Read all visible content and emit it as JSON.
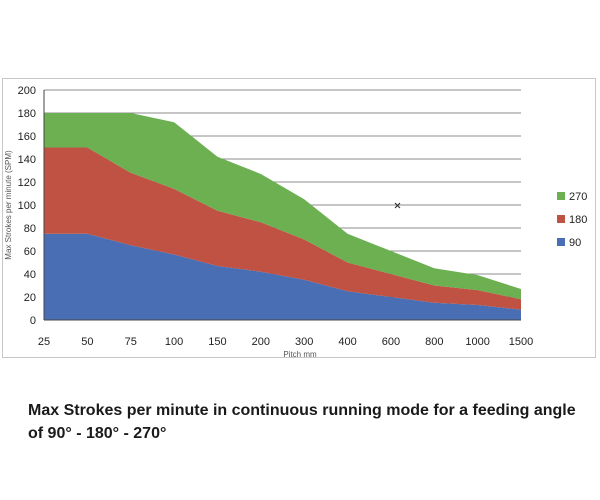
{
  "caption": "Max Strokes per minute in continuous running mode for a feeding angle of 90° - 180° - 270°",
  "chart_data": {
    "type": "area",
    "stacked": true,
    "categories": [
      "25",
      "50",
      "75",
      "100",
      "150",
      "200",
      "300",
      "400",
      "600",
      "800",
      "1000",
      "1500"
    ],
    "series": [
      {
        "name": "90",
        "color": "#4a6eb3",
        "values": [
          75,
          75,
          65,
          57,
          47,
          42,
          35,
          25,
          20,
          15,
          13,
          9
        ]
      },
      {
        "name": "180",
        "color": "#bf5243",
        "values": [
          75,
          75,
          63,
          57,
          48,
          43,
          35,
          25,
          20,
          15,
          13,
          9
        ]
      },
      {
        "name": "270",
        "color": "#6cb052",
        "values": [
          30,
          30,
          52,
          58,
          47,
          42,
          35,
          25,
          20,
          15,
          13,
          9
        ]
      }
    ],
    "xlabel": "Pitch mm",
    "ylabel": "Max Strokes per minute (SPM)",
    "ylim": [
      0,
      200
    ],
    "yticks": [
      0,
      20,
      40,
      60,
      80,
      100,
      120,
      140,
      160,
      180,
      200
    ],
    "grid": true,
    "legend_position": "right",
    "legend_order": [
      "270",
      "180",
      "90"
    ]
  }
}
